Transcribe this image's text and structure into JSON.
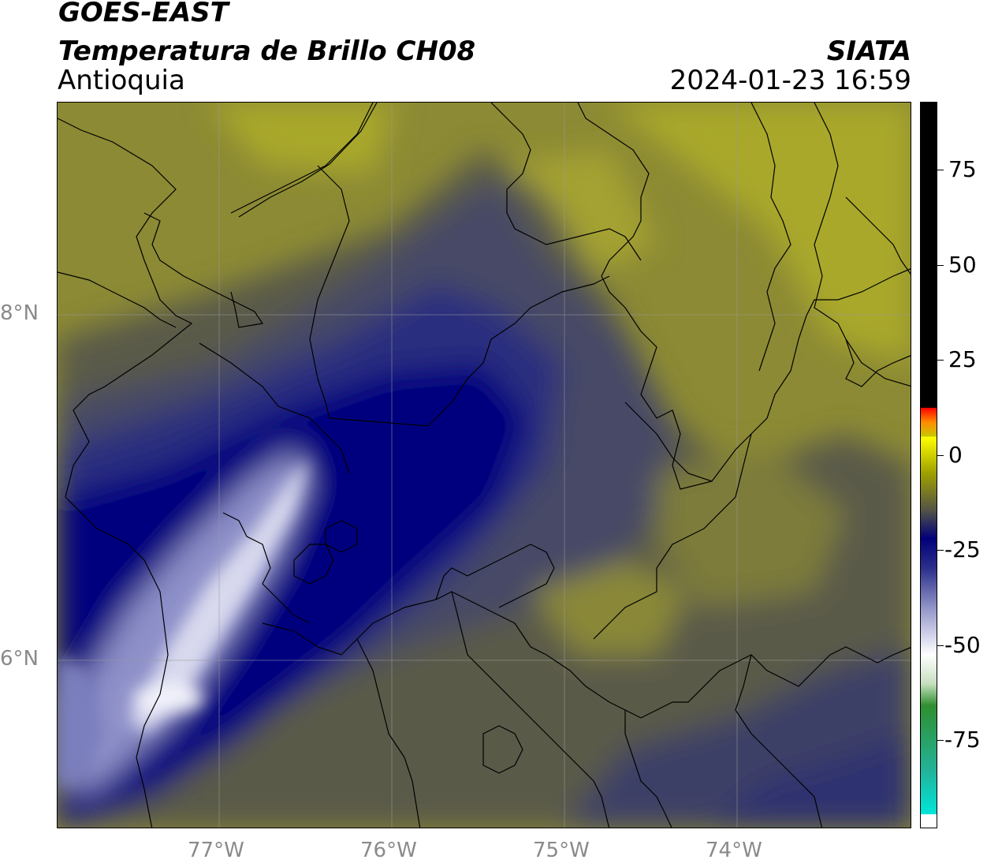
{
  "header": {
    "satellite": "GOES-EAST",
    "product": "Temperatura de Brillo CH08",
    "region": "Antioquia",
    "brand": "SIATA",
    "datetime": "2024-01-23 16:59"
  },
  "map": {
    "lat_labels": [
      "8°N",
      "6°N"
    ],
    "lon_labels": [
      "77°W",
      "76°W",
      "75°W",
      "74°W"
    ]
  },
  "colorbar": {
    "ticks": [
      "75",
      "50",
      "25",
      "0",
      "-25",
      "-50",
      "-75"
    ],
    "colors": {
      "cyan": "#00e5d8",
      "green": "#2f8f2f",
      "white": "#ffffff",
      "navy": "#00007a",
      "gray_olive": "#555544",
      "yellow": "#ffff00",
      "orange": "#ff8c00",
      "red": "#ff0000",
      "black": "#000000"
    }
  },
  "field_colors": {
    "olive_light": "#a9a82c",
    "olive": "#8c8a34",
    "gray_olive": "#5a5a48",
    "slate": "#474a66",
    "indigo": "#2b2f7e",
    "navy": "#05057f",
    "lavender": "#8e90c9",
    "white": "#e8e8f4"
  }
}
